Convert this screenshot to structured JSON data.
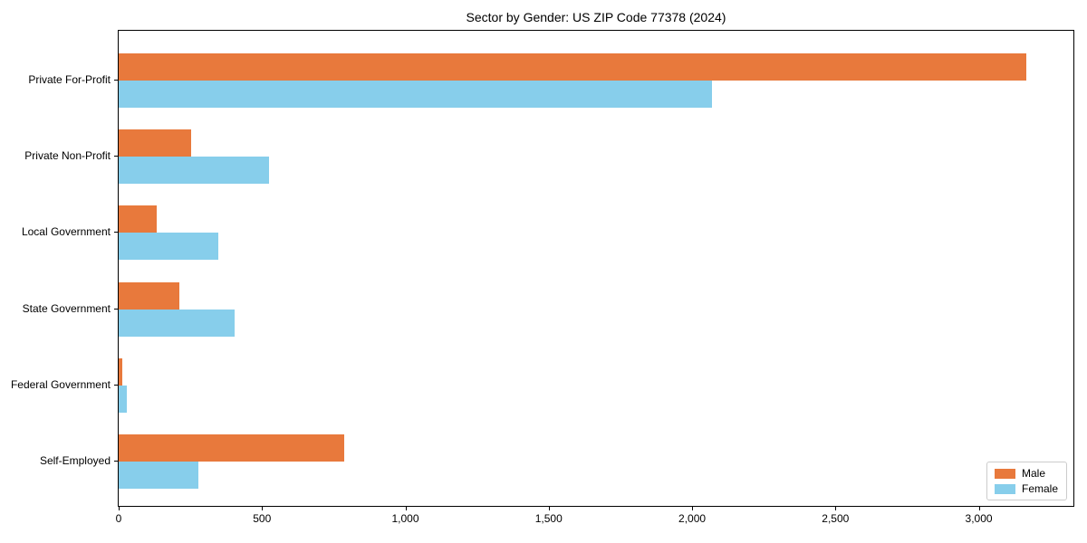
{
  "chart_data": {
    "type": "bar",
    "orientation": "horizontal",
    "title": "Sector by Gender: US ZIP Code 77378 (2024)",
    "categories": [
      "Private For-Profit",
      "Private Non-Profit",
      "Local Government",
      "State Government",
      "Federal Government",
      "Self-Employed"
    ],
    "series": [
      {
        "name": "Male",
        "color": "#e8793c",
        "values": [
          3165,
          252,
          132,
          211,
          12,
          786
        ]
      },
      {
        "name": "Female",
        "color": "#87ceeb",
        "values": [
          2070,
          523,
          347,
          403,
          30,
          277
        ]
      }
    ],
    "xlabel": "",
    "ylabel": "",
    "xlim": [
      0,
      3330
    ],
    "xticks": [
      0,
      500,
      1000,
      1500,
      2000,
      2500,
      3000
    ],
    "xtick_labels": [
      "0",
      "500",
      "1,000",
      "1,500",
      "2,000",
      "2,500",
      "3,000"
    ],
    "grid": false,
    "legend_position": "lower right",
    "colors": {
      "axis": "#000000",
      "background": "#ffffff",
      "legend_border": "#cccccc"
    }
  }
}
